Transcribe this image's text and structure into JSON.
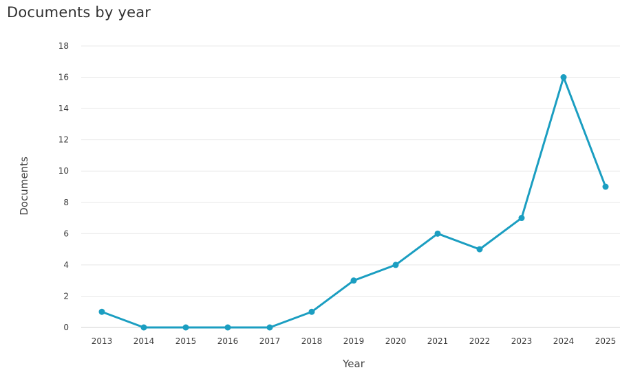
{
  "chart_data": {
    "type": "line",
    "title": "Documents by year",
    "xlabel": "Year",
    "ylabel": "Documents",
    "x": [
      "2013",
      "2014",
      "2015",
      "2016",
      "2017",
      "2018",
      "2019",
      "2020",
      "2021",
      "2022",
      "2023",
      "2024",
      "2025"
    ],
    "series": [
      {
        "values": [
          1,
          0,
          0,
          0,
          0,
          1,
          3,
          4,
          6,
          5,
          7,
          16,
          9
        ]
      }
    ],
    "ylim": [
      0,
      18
    ],
    "yticks": [
      0,
      2,
      4,
      6,
      8,
      10,
      12,
      14,
      16,
      18
    ],
    "grid": true,
    "legend": "none",
    "line_color": "#1b9ec1"
  }
}
